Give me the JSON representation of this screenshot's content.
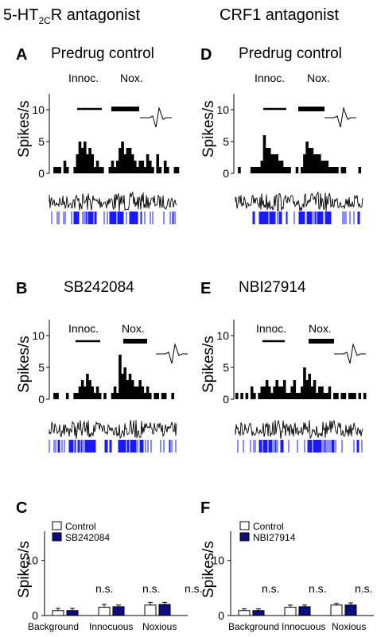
{
  "headers": {
    "left": {
      "main": "5-HT",
      "sub": "2C",
      "tail": "R antagonist"
    },
    "right": "CRF1 antagonist"
  },
  "colors": {
    "trace": "#000000",
    "raster": "#1a1aff",
    "control_bar": "#ffffff",
    "drug_bar": "#0d0d80"
  },
  "panels": {
    "A": {
      "letter": "A",
      "condition": "Predrug control",
      "ylabel": "Spikes/s",
      "innoc": "Innoc.",
      "nox": "Nox."
    },
    "B": {
      "letter": "B",
      "condition": "SB242084",
      "ylabel": "Spikes/s",
      "innoc": "Innoc.",
      "nox": "Nox."
    },
    "D": {
      "letter": "D",
      "condition": "Predrug control",
      "ylabel": "Spikes/s",
      "innoc": "Innoc.",
      "nox": "Nox."
    },
    "E": {
      "letter": "E",
      "condition": "NBI27914",
      "ylabel": "Spikes/s",
      "innoc": "Innoc.",
      "nox": "Nox."
    },
    "C": {
      "letter": "C",
      "ylabel": "Spikes/s",
      "legend": [
        "Control",
        "SB242084"
      ],
      "ns": "n.s."
    },
    "F": {
      "letter": "F",
      "ylabel": "Spikes/s",
      "legend": [
        "Control",
        "NBI27914"
      ],
      "ns": "n.s."
    }
  },
  "chart_data": [
    {
      "panel": "A",
      "type": "bar",
      "title": "Predrug control",
      "ylabel": "Spikes/s",
      "ylim": [
        0,
        12
      ],
      "yticks": [
        0,
        5,
        10
      ],
      "values": [
        0,
        1,
        1,
        1,
        0,
        2,
        1,
        0,
        0,
        1,
        3,
        5,
        4,
        5,
        3,
        4,
        3,
        1,
        2,
        1,
        1,
        0,
        0,
        1,
        2,
        1,
        2,
        4,
        5,
        3,
        4,
        4,
        3,
        2,
        1,
        2,
        2,
        1,
        3,
        2,
        1,
        0,
        3,
        1,
        0,
        2,
        1,
        0,
        0,
        1,
        1,
        0
      ]
    },
    {
      "panel": "B",
      "type": "bar",
      "title": "SB242084",
      "ylabel": "Spikes/s",
      "ylim": [
        0,
        12
      ],
      "yticks": [
        0,
        5,
        10
      ],
      "values": [
        0,
        1,
        1,
        0,
        0,
        0,
        1,
        0,
        0,
        1,
        1,
        2,
        3,
        2,
        4,
        3,
        2,
        1,
        2,
        1,
        0,
        1,
        0,
        0,
        1,
        2,
        1,
        7,
        4,
        5,
        3,
        4,
        3,
        2,
        2,
        3,
        2,
        1,
        2,
        1,
        0,
        1,
        1,
        0,
        1,
        1,
        0,
        0,
        1,
        0,
        0,
        0
      ]
    },
    {
      "panel": "D",
      "type": "bar",
      "title": "Predrug control",
      "ylabel": "Spikes/s",
      "ylim": [
        0,
        12
      ],
      "yticks": [
        0,
        5,
        10
      ],
      "values": [
        0,
        1,
        0,
        0,
        0,
        0,
        1,
        1,
        1,
        1,
        2,
        6,
        4,
        4,
        3,
        3,
        3,
        2,
        2,
        1,
        1,
        1,
        0,
        0,
        1,
        0,
        1,
        3,
        5,
        4,
        4,
        3,
        3,
        3,
        2,
        2,
        2,
        1,
        1,
        1,
        1,
        0,
        1,
        1,
        0,
        0,
        0,
        0,
        0,
        1,
        0,
        0
      ]
    },
    {
      "panel": "E",
      "type": "bar",
      "title": "NBI27914",
      "ylabel": "Spikes/s",
      "ylim": [
        0,
        12
      ],
      "yticks": [
        0,
        5,
        10
      ],
      "values": [
        1,
        0,
        1,
        0,
        1,
        0,
        2,
        1,
        0,
        1,
        2,
        2,
        3,
        2,
        1,
        2,
        3,
        2,
        2,
        3,
        1,
        1,
        2,
        3,
        1,
        1,
        2,
        5,
        3,
        4,
        2,
        3,
        1,
        2,
        2,
        1,
        1,
        2,
        0,
        1,
        1,
        0,
        1,
        1,
        0,
        1,
        1,
        1,
        0,
        1,
        0,
        1
      ]
    },
    {
      "panel": "C",
      "type": "bar",
      "ylabel": "Spikes/s",
      "ylim": [
        0,
        15
      ],
      "yticks": [
        0,
        10
      ],
      "categories": [
        "Background",
        "Innocuous",
        "Noxious"
      ],
      "series": [
        {
          "name": "Control",
          "values": [
            0.9,
            1.5,
            1.9
          ],
          "errors": [
            0.4,
            0.5,
            0.5
          ]
        },
        {
          "name": "SB242084",
          "values": [
            0.9,
            1.6,
            2.0
          ],
          "errors": [
            0.4,
            0.3,
            0.4
          ]
        }
      ],
      "annotations": [
        "n.s.",
        "n.s.",
        "n.s."
      ]
    },
    {
      "panel": "F",
      "type": "bar",
      "ylabel": "Spikes/s",
      "ylim": [
        0,
        15
      ],
      "yticks": [
        0,
        10
      ],
      "categories": [
        "Background",
        "Innocuous",
        "Noxious"
      ],
      "series": [
        {
          "name": "Control",
          "values": [
            0.9,
            1.5,
            1.9
          ],
          "errors": [
            0.3,
            0.4,
            0.3
          ]
        },
        {
          "name": "NBI27914",
          "values": [
            0.9,
            1.6,
            1.9
          ],
          "errors": [
            0.3,
            0.3,
            0.4
          ]
        }
      ],
      "annotations": [
        "n.s.",
        "n.s.",
        "n.s."
      ]
    }
  ]
}
